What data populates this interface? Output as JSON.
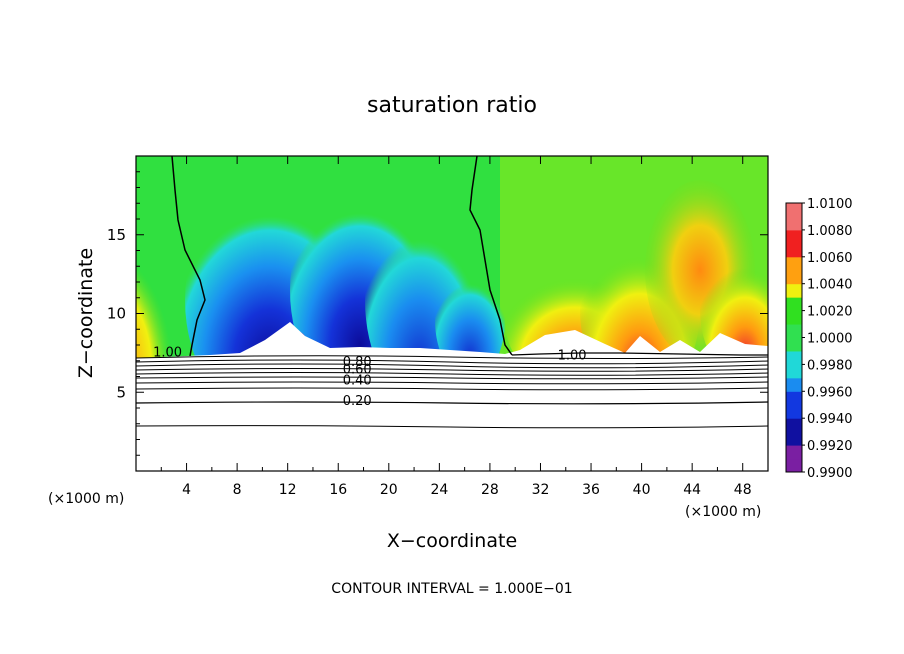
{
  "chart_data": {
    "type": "heatmap",
    "title": "saturation ratio",
    "xlabel": "X−coordinate",
    "ylabel": "Z−coordinate",
    "x_unit_left": "(×1000 m)",
    "x_unit_right": "(×1000 m)",
    "xlim": [
      0,
      50
    ],
    "ylim": [
      0,
      20
    ],
    "x_ticks": [
      4,
      8,
      12,
      16,
      20,
      24,
      28,
      32,
      36,
      40,
      44,
      48
    ],
    "y_ticks": [
      5,
      10,
      15
    ],
    "colorbar": {
      "levels": [
        "1.0100",
        "1.0080",
        "1.0060",
        "1.0040",
        "1.0020",
        "1.0000",
        "0.9980",
        "0.9960",
        "0.9940",
        "0.9920",
        "0.9900"
      ],
      "values": [
        1.01,
        1.008,
        1.006,
        1.004,
        1.002,
        1.0,
        0.998,
        0.996,
        0.994,
        0.992,
        0.99
      ],
      "colors": [
        "#7a1fa2",
        "#1010a0",
        "#1238e0",
        "#1a8cf0",
        "#20d8d8",
        "#30e050",
        "#30e020",
        "#f0f010",
        "#ffa010",
        "#f02020",
        "#f07070"
      ]
    },
    "contour_labels": [
      {
        "text": "1.00",
        "x": 2.5,
        "z": 7.6
      },
      {
        "text": "1.00",
        "x": 34.5,
        "z": 7.4
      },
      {
        "text": "0.80",
        "x": 17.5,
        "z": 7.0
      },
      {
        "text": "0.60",
        "x": 17.5,
        "z": 6.5
      },
      {
        "text": "0.40",
        "x": 17.5,
        "z": 5.8
      },
      {
        "text": "0.20",
        "x": 17.5,
        "z": 4.5
      }
    ],
    "contour_interval_text": "CONTOUR INTERVAL = 1.000E−01",
    "grid": false,
    "legend_placement": "right"
  }
}
